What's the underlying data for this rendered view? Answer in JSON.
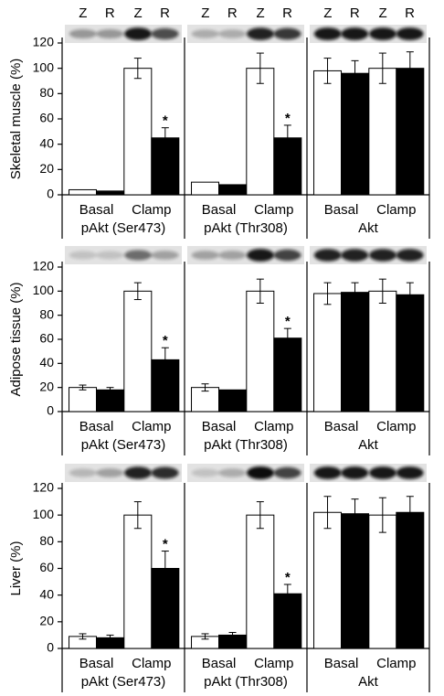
{
  "chart_data": [
    {
      "type": "bar",
      "ylabel": "Skeletal muscle (%)",
      "xlabel": "pAkt (Ser473)",
      "categories": [
        "Basal",
        "Clamp"
      ],
      "ylim": [
        0,
        120
      ],
      "yticks": [
        0,
        20,
        40,
        60,
        80,
        100,
        120
      ],
      "series": [
        {
          "name": "Z",
          "color": "#ffffff",
          "values": [
            4,
            100
          ],
          "errors": [
            null,
            8
          ]
        },
        {
          "name": "R",
          "color": "#000000",
          "values": [
            3,
            45
          ],
          "errors": [
            null,
            8
          ],
          "labels": [
            null,
            "*"
          ]
        }
      ]
    },
    {
      "type": "bar",
      "xlabel": "pAkt (Thr308)",
      "categories": [
        "Basal",
        "Clamp"
      ],
      "ylim": [
        0,
        120
      ],
      "series": [
        {
          "name": "Z",
          "color": "#ffffff",
          "values": [
            10,
            100
          ],
          "errors": [
            null,
            12
          ]
        },
        {
          "name": "R",
          "color": "#000000",
          "values": [
            8,
            45
          ],
          "errors": [
            null,
            10
          ],
          "labels": [
            null,
            "*"
          ]
        }
      ]
    },
    {
      "type": "bar",
      "xlabel": "Akt",
      "categories": [
        "Basal",
        "Clamp"
      ],
      "ylim": [
        0,
        120
      ],
      "series": [
        {
          "name": "Z",
          "color": "#ffffff",
          "values": [
            98,
            100
          ],
          "errors": [
            10,
            12
          ]
        },
        {
          "name": "R",
          "color": "#000000",
          "values": [
            96,
            100
          ],
          "errors": [
            10,
            13
          ]
        }
      ]
    },
    {
      "type": "bar",
      "ylabel": "Adipose tissue (%)",
      "xlabel": "pAkt (Ser473)",
      "categories": [
        "Basal",
        "Clamp"
      ],
      "ylim": [
        0,
        120
      ],
      "yticks": [
        0,
        20,
        40,
        60,
        80,
        100,
        120
      ],
      "series": [
        {
          "color": "#ffffff",
          "values": [
            20,
            100
          ],
          "errors": [
            2,
            7
          ]
        },
        {
          "color": "#000000",
          "values": [
            18,
            43
          ],
          "errors": [
            2,
            10
          ],
          "labels": [
            null,
            "*"
          ]
        }
      ]
    },
    {
      "type": "bar",
      "xlabel": "pAkt (Thr308)",
      "categories": [
        "Basal",
        "Clamp"
      ],
      "ylim": [
        0,
        120
      ],
      "series": [
        {
          "color": "#ffffff",
          "values": [
            20,
            100
          ],
          "errors": [
            3,
            10
          ]
        },
        {
          "color": "#000000",
          "values": [
            18,
            61
          ],
          "errors": [
            null,
            8
          ],
          "labels": [
            null,
            "*"
          ]
        }
      ]
    },
    {
      "type": "bar",
      "xlabel": "Akt",
      "categories": [
        "Basal",
        "Clamp"
      ],
      "ylim": [
        0,
        120
      ],
      "series": [
        {
          "color": "#ffffff",
          "values": [
            98,
            100
          ],
          "errors": [
            9,
            10
          ]
        },
        {
          "color": "#000000",
          "values": [
            99,
            97
          ],
          "errors": [
            8,
            10
          ]
        }
      ]
    },
    {
      "type": "bar",
      "ylabel": "Liver (%)",
      "xlabel": "pAkt (Ser473)",
      "categories": [
        "Basal",
        "Clamp"
      ],
      "ylim": [
        0,
        120
      ],
      "yticks": [
        0,
        20,
        40,
        60,
        80,
        100,
        120
      ],
      "series": [
        {
          "color": "#ffffff",
          "values": [
            9,
            100
          ],
          "errors": [
            2,
            10
          ]
        },
        {
          "color": "#000000",
          "values": [
            8,
            60
          ],
          "errors": [
            2,
            13
          ],
          "labels": [
            null,
            "*"
          ]
        }
      ]
    },
    {
      "type": "bar",
      "xlabel": "pAkt (Thr308)",
      "categories": [
        "Basal",
        "Clamp"
      ],
      "ylim": [
        0,
        120
      ],
      "series": [
        {
          "color": "#ffffff",
          "values": [
            9,
            100
          ],
          "errors": [
            2,
            10
          ]
        },
        {
          "color": "#000000",
          "values": [
            10,
            41
          ],
          "errors": [
            2,
            7
          ],
          "labels": [
            null,
            "*"
          ]
        }
      ]
    },
    {
      "type": "bar",
      "xlabel": "Akt",
      "categories": [
        "Basal",
        "Clamp"
      ],
      "ylim": [
        0,
        120
      ],
      "series": [
        {
          "color": "#ffffff",
          "values": [
            102,
            100
          ],
          "errors": [
            12,
            13
          ]
        },
        {
          "color": "#000000",
          "values": [
            101,
            102
          ],
          "errors": [
            11,
            12
          ]
        }
      ]
    }
  ]
}
